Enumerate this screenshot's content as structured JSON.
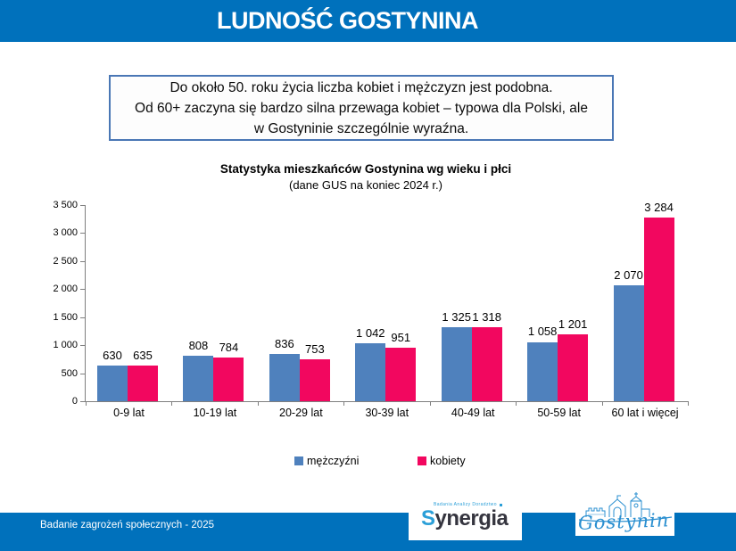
{
  "header": {
    "title": "LUDNOŚĆ GOSTYNINA",
    "bg_color": "#0071bc",
    "text_color": "#ffffff"
  },
  "callout": {
    "border_color": "#4a77b5",
    "lines": [
      "Do około 50. roku życia liczba kobiet i mężczyzn  jest podobna.",
      "Od 60+ zaczyna się bardzo silna przewaga kobiet – typowa dla Polski, ale",
      "w Gostyninie szczególnie wyraźna."
    ]
  },
  "chart_data": {
    "type": "bar",
    "title": "Statystyka mieszkańców Gostynina wg wieku i płci",
    "subtitle": "(dane GUS na koniec 2024 r.)",
    "categories": [
      "0-9 lat",
      "10-19 lat",
      "20-29 lat",
      "30-39 lat",
      "40-49 lat",
      "50-59 lat",
      "60 lat i więcej"
    ],
    "series": [
      {
        "name": "mężczyźni",
        "color": "#4f81bd",
        "values": [
          630,
          808,
          836,
          1042,
          1325,
          1058,
          2070
        ]
      },
      {
        "name": "kobiety",
        "color": "#f2075f",
        "values": [
          635,
          784,
          753,
          951,
          1318,
          1201,
          3284
        ]
      }
    ],
    "ylim": [
      0,
      3500
    ],
    "ytick_step": 500,
    "ytick_labels": [
      "0",
      "500",
      "1 000",
      "1 500",
      "2 000",
      "2 500",
      "3 000",
      "3 500"
    ],
    "grid": false,
    "data_labels": true,
    "legend_position": "bottom",
    "number_format": "space-thousands",
    "axis_color": "#7f7f7f"
  },
  "footer": {
    "text": "Badanie zagrożeń społecznych - 2025",
    "bg_color": "#0071bc"
  },
  "logos": {
    "synergia": {
      "caption": "Badania Analizy Doradztwo",
      "name_first_letter": "S",
      "name_rest": "ynergia"
    },
    "gostynin": {
      "name": "Gostynin"
    }
  }
}
